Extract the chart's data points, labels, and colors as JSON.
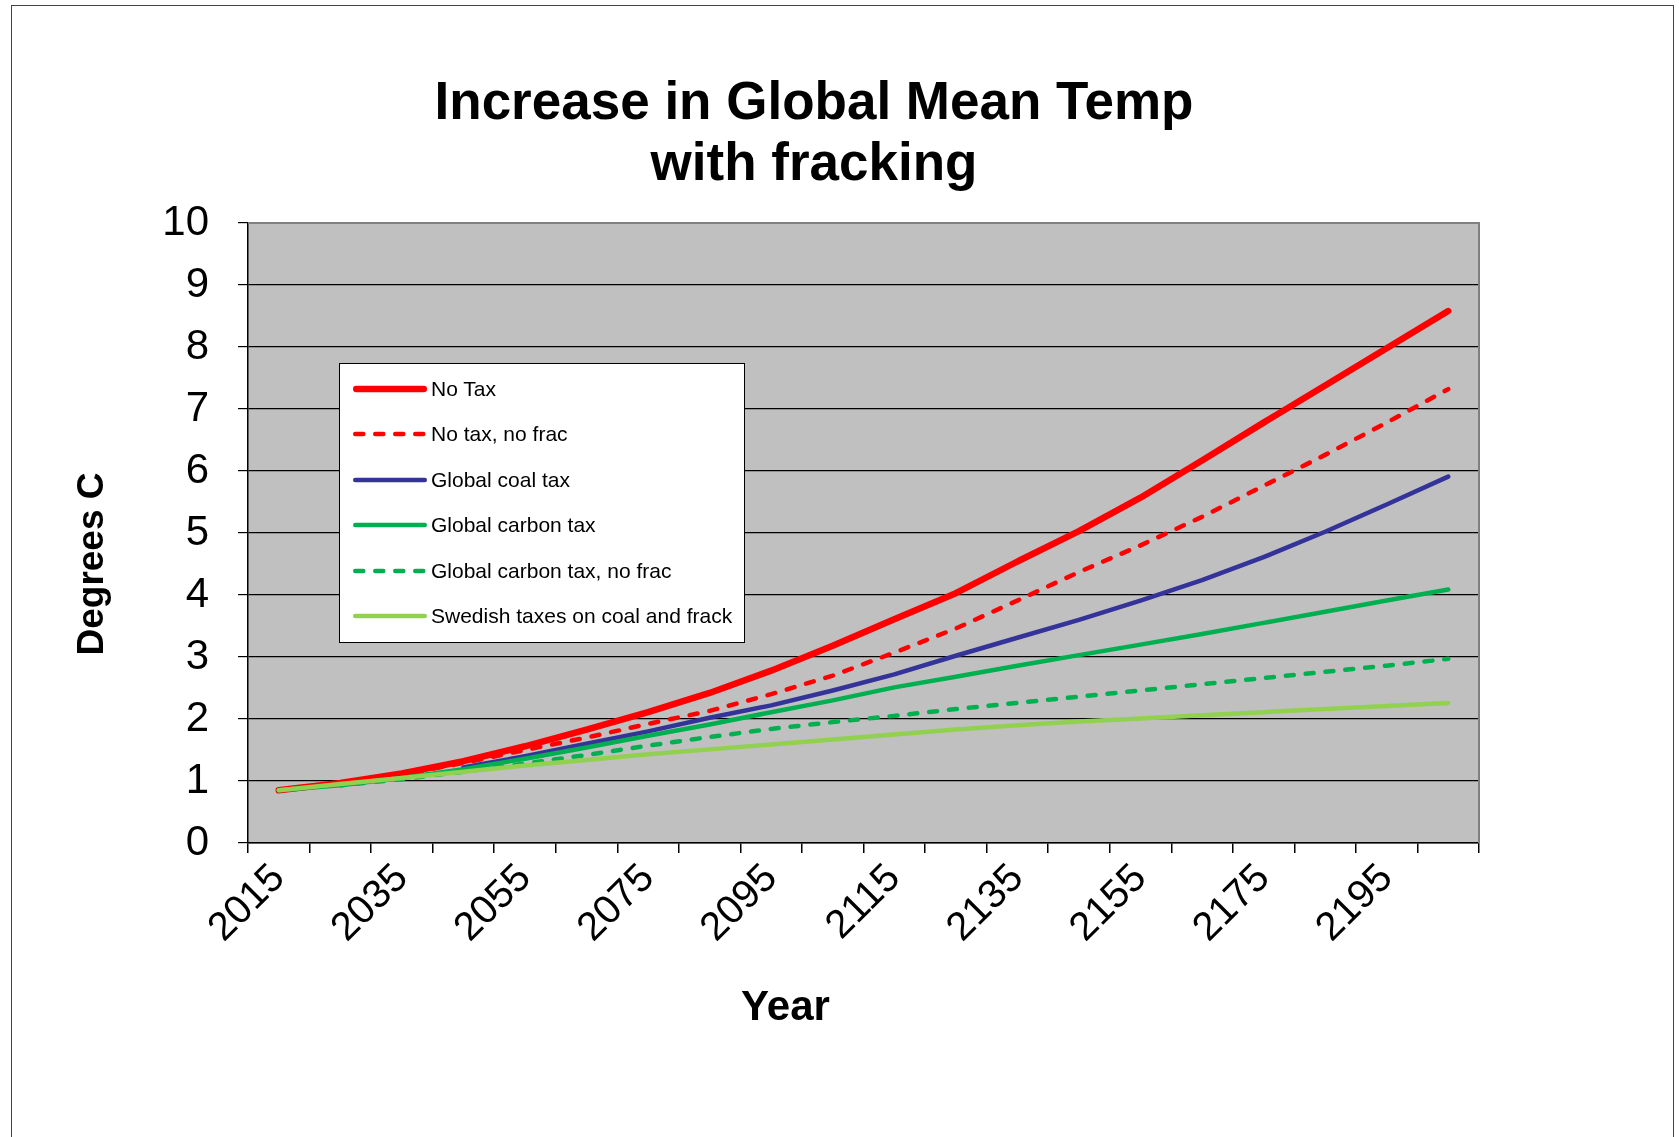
{
  "chart_data": {
    "type": "line",
    "title": "Increase in Global Mean Temp with fracking",
    "xlabel": "Year",
    "ylabel": "Degrees C",
    "categories": [
      "2015",
      null,
      "2035",
      null,
      "2055",
      null,
      "2075",
      null,
      "2095",
      null,
      "2115",
      null,
      "2135",
      null,
      "2155",
      null,
      "2175",
      null,
      "2195",
      null
    ],
    "ylim": [
      0,
      10
    ],
    "yticks": [
      0,
      1,
      2,
      3,
      4,
      5,
      6,
      7,
      8,
      9,
      10
    ],
    "grid": "y",
    "legend": "top left",
    "marker": "none",
    "series": [
      {
        "name": "No Tax",
        "color": "#ff0000",
        "line_style": "solid",
        "values": [
          0.85,
          0.97,
          1.12,
          1.32,
          1.56,
          1.83,
          2.11,
          2.42,
          2.78,
          3.18,
          3.61,
          4.03,
          4.54,
          5.03,
          5.57,
          6.17,
          6.78,
          7.38,
          7.98,
          8.58
        ]
      },
      {
        "name": "No tax, no frac",
        "color": "#ff0000",
        "line_style": "dashed",
        "values": [
          0.85,
          0.96,
          1.1,
          1.29,
          1.5,
          1.7,
          1.92,
          2.13,
          2.4,
          2.7,
          3.07,
          3.46,
          3.91,
          4.37,
          4.8,
          5.26,
          5.76,
          6.26,
          6.78,
          7.32
        ]
      },
      {
        "name": "Global coal tax",
        "color": "#333399",
        "line_style": "solid",
        "values": [
          null,
          null,
          null,
          1.22,
          1.4,
          1.6,
          1.8,
          2.02,
          2.22,
          2.46,
          2.72,
          3.02,
          3.31,
          3.6,
          3.91,
          4.24,
          4.61,
          5.02,
          5.46,
          5.91
        ]
      },
      {
        "name": "Global carbon tax",
        "color": "#00b050",
        "line_style": "solid",
        "values": [
          0.85,
          0.93,
          1.05,
          1.19,
          1.36,
          1.54,
          1.73,
          1.91,
          2.11,
          2.3,
          2.51,
          2.68,
          2.86,
          3.03,
          3.2,
          3.37,
          3.55,
          3.73,
          3.91,
          4.09
        ]
      },
      {
        "name": "Global carbon tax, no frac",
        "color": "#00b050",
        "line_style": "dashed",
        "values": [
          null,
          0.93,
          1.03,
          1.15,
          1.28,
          1.42,
          1.57,
          1.71,
          1.84,
          1.95,
          2.05,
          2.16,
          2.26,
          2.36,
          2.46,
          2.56,
          2.66,
          2.76,
          2.86,
          2.97
        ]
      },
      {
        "name": "Swedish taxes on coal and frack",
        "color": "#92d050",
        "line_style": "solid",
        "values": [
          0.85,
          0.95,
          1.05,
          1.15,
          1.25,
          1.34,
          1.43,
          1.51,
          1.59,
          1.67,
          1.75,
          1.83,
          1.9,
          1.96,
          2.01,
          2.06,
          2.11,
          2.16,
          2.21,
          2.26
        ]
      }
    ]
  }
}
